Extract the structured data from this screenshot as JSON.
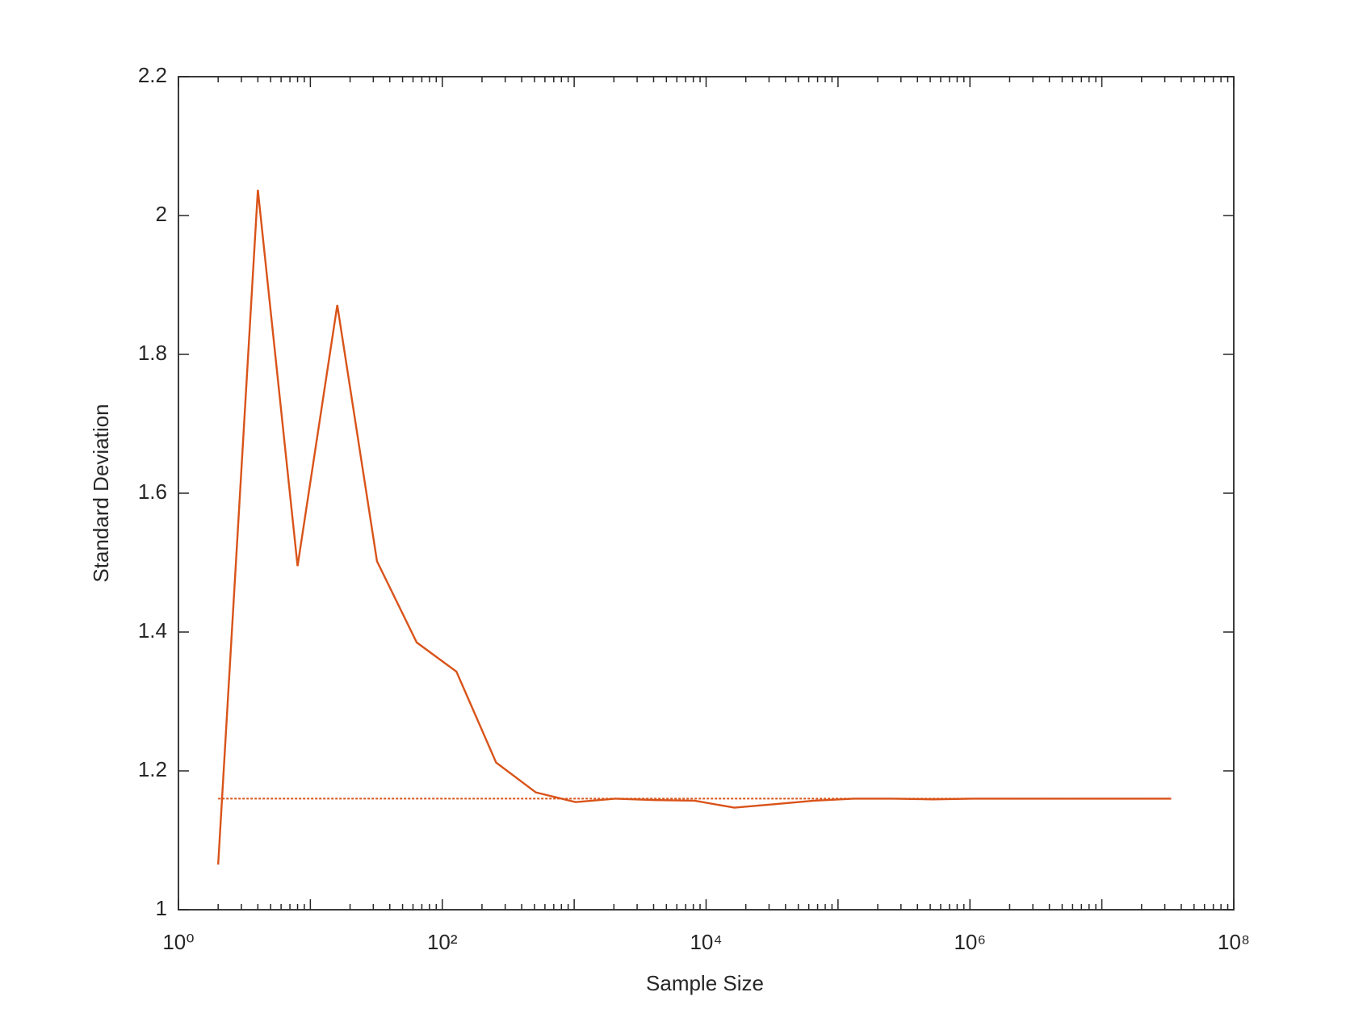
{
  "chart_data": {
    "type": "line",
    "xlabel": "Sample Size",
    "ylabel": "Standard Deviation",
    "xscale": "log",
    "xlim": [
      1,
      100000000
    ],
    "ylim": [
      1,
      2.2
    ],
    "xticks": [
      {
        "value": 1,
        "label": "10⁰"
      },
      {
        "value": 100,
        "label": "10²"
      },
      {
        "value": 10000,
        "label": "10⁴"
      },
      {
        "value": 1000000,
        "label": "10⁶"
      },
      {
        "value": 100000000,
        "label": "10⁸"
      }
    ],
    "yticks": [
      1,
      1.2,
      1.4,
      1.6,
      1.8,
      2,
      2.2
    ],
    "grid": false,
    "series": [
      {
        "color": "#d95319",
        "style": "solid",
        "x": [
          2,
          4,
          8,
          16,
          32,
          64,
          128,
          256,
          512,
          1024,
          2048,
          4096,
          8192,
          16384,
          32768,
          65536,
          131072,
          262144,
          524288,
          1048576,
          2097152,
          4194304,
          8388608,
          16777216,
          33554432
        ],
        "values": [
          1.065,
          2.037,
          1.495,
          1.871,
          1.502,
          1.385,
          1.343,
          1.212,
          1.169,
          1.155,
          1.16,
          1.158,
          1.157,
          1.147,
          1.152,
          1.157,
          1.16,
          1.16,
          1.159,
          1.16,
          1.16,
          1.16,
          1.16,
          1.16,
          1.16
        ]
      },
      {
        "color": "#d95319",
        "style": "dotted",
        "x": [
          2,
          33554432
        ],
        "values": [
          1.16,
          1.16
        ]
      }
    ]
  }
}
